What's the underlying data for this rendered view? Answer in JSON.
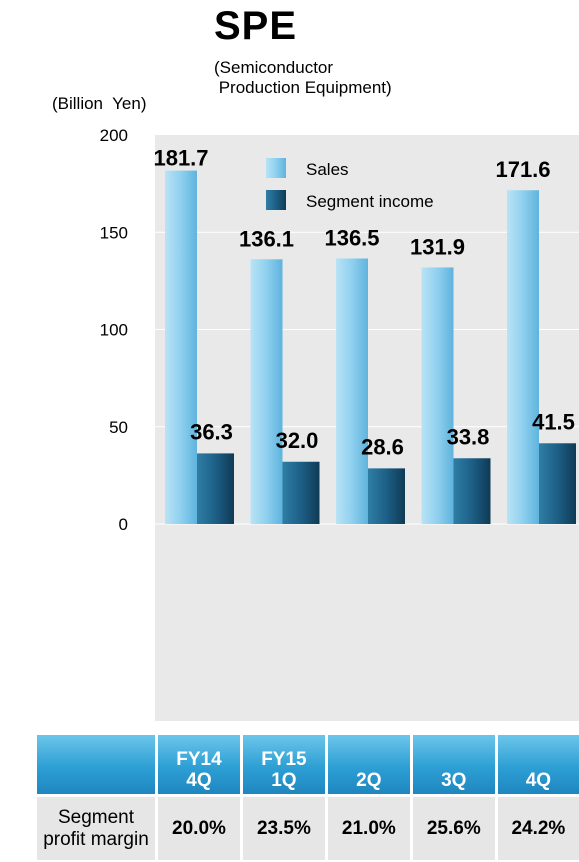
{
  "header": {
    "title": "SPE",
    "subtitle_line1": "(Semiconductor",
    "subtitle_line2": " Production Equipment)",
    "unit": "(Billion  Yen)"
  },
  "chart_data": {
    "type": "bar",
    "categories": [
      "FY14 4Q",
      "FY15 1Q",
      "2Q",
      "3Q",
      "4Q"
    ],
    "series": [
      {
        "name": "Sales",
        "values": [
          181.7,
          136.1,
          136.5,
          131.9,
          171.6
        ]
      },
      {
        "name": "Segment income",
        "values": [
          36.3,
          32.0,
          28.6,
          33.8,
          41.5
        ]
      }
    ],
    "ylim": [
      0,
      200
    ],
    "yticks": [
      0,
      50,
      100,
      150,
      200
    ],
    "legend_position": "top-center",
    "colors": {
      "sales": "#8ccfee",
      "income": "#1c5778",
      "plot_bg": "#e9e9e9"
    }
  },
  "table": {
    "headers": [
      {
        "line1": "",
        "line2": ""
      },
      {
        "line1": "FY14",
        "line2": "4Q"
      },
      {
        "line1": "FY15",
        "line2": "1Q"
      },
      {
        "line1": "",
        "line2": "2Q"
      },
      {
        "line1": "",
        "line2": "3Q"
      },
      {
        "line1": "",
        "line2": "4Q"
      }
    ],
    "row_label_line1": "Segment",
    "row_label_line2": "profit margin",
    "margins": [
      "20.0%",
      "23.5%",
      "21.0%",
      "25.6%",
      "24.2%"
    ]
  }
}
